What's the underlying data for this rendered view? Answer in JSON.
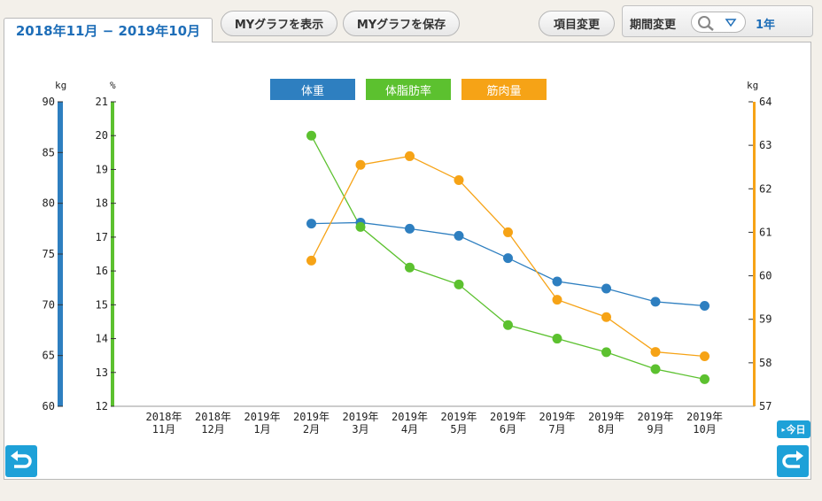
{
  "header": {
    "period_range": "2018年11月 − 2019年10月",
    "show_my_graph": "MYグラフを表示",
    "save_my_graph": "MYグラフを保存",
    "change_items": "項目変更",
    "change_period": "期間変更",
    "period_value": "1年"
  },
  "buttons": {
    "today": "今日"
  },
  "units": {
    "left1": "kg",
    "left2": "%",
    "right": "kg"
  },
  "colors": {
    "weight": "#2e7fc0",
    "body_fat": "#5cc12f",
    "muscle": "#f6a316",
    "nav": "#1ea1d8"
  },
  "icons": {
    "back": "back-arrow-icon",
    "forward": "forward-arrow-icon",
    "search": "magnifier-icon",
    "dropdown": "triangle-down-icon"
  },
  "chart_data": {
    "type": "line",
    "categories": [
      "2018年11月",
      "2018年12月",
      "2019年1月",
      "2019年2月",
      "2019年3月",
      "2019年4月",
      "2019年5月",
      "2019年6月",
      "2019年7月",
      "2019年8月",
      "2019年9月",
      "2019年10月"
    ],
    "x_tick_labels": [
      [
        "2018年",
        "11月"
      ],
      [
        "2018年",
        "12月"
      ],
      [
        "2019年",
        "1月"
      ],
      [
        "2019年",
        "2月"
      ],
      [
        "2019年",
        "3月"
      ],
      [
        "2019年",
        "4月"
      ],
      [
        "2019年",
        "5月"
      ],
      [
        "2019年",
        "6月"
      ],
      [
        "2019年",
        "7月"
      ],
      [
        "2019年",
        "8月"
      ],
      [
        "2019年",
        "9月"
      ],
      [
        "2019年",
        "10月"
      ]
    ],
    "series": [
      {
        "name": "体重",
        "axis": "left1",
        "values": [
          null,
          null,
          null,
          78.0,
          78.1,
          77.5,
          76.8,
          74.6,
          72.3,
          71.6,
          70.3,
          69.9
        ]
      },
      {
        "name": "体脂肪率",
        "axis": "left2",
        "values": [
          null,
          null,
          null,
          20.0,
          17.3,
          16.1,
          15.6,
          14.4,
          14.0,
          13.6,
          13.1,
          12.8
        ]
      },
      {
        "name": "筋肉量",
        "axis": "right",
        "values": [
          null,
          null,
          null,
          60.35,
          62.55,
          62.75,
          62.2,
          61.0,
          59.45,
          59.05,
          58.25,
          58.15
        ]
      }
    ],
    "axes": {
      "left1": {
        "unit": "kg",
        "ylim": [
          60,
          90
        ],
        "ticks": [
          60,
          65,
          70,
          75,
          80,
          85,
          90
        ]
      },
      "left2": {
        "unit": "%",
        "ylim": [
          12,
          21
        ],
        "ticks": [
          12,
          13,
          14,
          15,
          16,
          17,
          18,
          19,
          20,
          21
        ]
      },
      "right": {
        "unit": "kg",
        "ylim": [
          57,
          64
        ],
        "ticks": [
          57,
          58,
          59,
          60,
          61,
          62,
          63,
          64
        ]
      }
    },
    "legend_position": "top-center",
    "grid": false
  }
}
